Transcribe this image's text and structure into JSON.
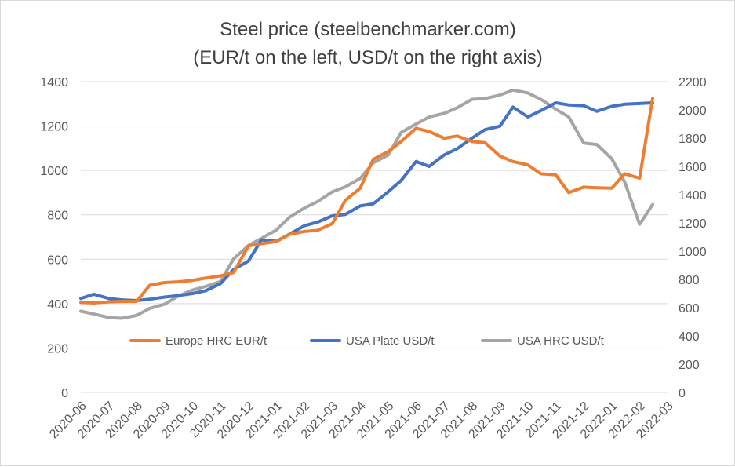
{
  "chart_data": {
    "type": "line",
    "title": "Steel price (steelbenchmarker.com)",
    "subtitle": "(EUR/t on the left, USD/t on the right axis)",
    "x_labels": [
      "2020-06",
      "2020-07",
      "2020-08",
      "2020-09",
      "2020-10",
      "2020-11",
      "2020-12",
      "2021-01",
      "2021-02",
      "2021-03",
      "2021-04",
      "2021-05",
      "2021-06",
      "2021-07",
      "2021-08",
      "2021-09",
      "2021-10",
      "2021-11",
      "2021-12",
      "2022-01",
      "2022-02",
      "2022-03"
    ],
    "y_left": {
      "min": 0,
      "max": 1400,
      "step": 200,
      "ticks": [
        "0",
        "200",
        "400",
        "600",
        "800",
        "1000",
        "1200",
        "1400"
      ]
    },
    "y_right": {
      "min": 0,
      "max": 2200,
      "step": 200,
      "ticks": [
        "0",
        "200",
        "400",
        "600",
        "800",
        "1000",
        "1200",
        "1400",
        "1600",
        "1800",
        "2000",
        "2200"
      ]
    },
    "grid": true,
    "legend_position": "inside-lower",
    "series": [
      {
        "name": "Europe HRC EUR/t",
        "axis": "left",
        "color": "#ed7d31",
        "points": [
          [
            "2020-06",
            405
          ],
          [
            "2020-06-15",
            403
          ],
          [
            "2020-07",
            408
          ],
          [
            "2020-07-15",
            410
          ],
          [
            "2020-08",
            410
          ],
          [
            "2020-08-15",
            483
          ],
          [
            "2020-09",
            495
          ],
          [
            "2020-09-15",
            498
          ],
          [
            "2020-10",
            505
          ],
          [
            "2020-10-15",
            515
          ],
          [
            "2020-11",
            525
          ],
          [
            "2020-11-15",
            540
          ],
          [
            "2020-12",
            660
          ],
          [
            "2020-12-15",
            670
          ],
          [
            "2021-01",
            680
          ],
          [
            "2021-01-15",
            712
          ],
          [
            "2021-02",
            725
          ],
          [
            "2021-02-15",
            730
          ],
          [
            "2021-03",
            760
          ],
          [
            "2021-03-15",
            865
          ],
          [
            "2021-04",
            920
          ],
          [
            "2021-04-15",
            1050
          ],
          [
            "2021-05",
            1085
          ],
          [
            "2021-05-15",
            1130
          ],
          [
            "2021-06",
            1190
          ],
          [
            "2021-06-15",
            1175
          ],
          [
            "2021-07",
            1145
          ],
          [
            "2021-07-15",
            1155
          ],
          [
            "2021-08",
            1130
          ],
          [
            "2021-08-15",
            1125
          ],
          [
            "2021-09",
            1065
          ],
          [
            "2021-09-15",
            1040
          ],
          [
            "2021-10",
            1025
          ],
          [
            "2021-10-15",
            985
          ],
          [
            "2021-11",
            980
          ],
          [
            "2021-11-15",
            900
          ],
          [
            "2021-12",
            925
          ],
          [
            "2021-12-15",
            922
          ],
          [
            "2022-01",
            920
          ],
          [
            "2022-01-15",
            985
          ],
          [
            "2022-02",
            965
          ],
          [
            "2022-02-15",
            1325
          ]
        ]
      },
      {
        "name": "USA Plate USD/t",
        "axis": "right",
        "color": "#4472c4",
        "points": [
          [
            "2020-06",
            665
          ],
          [
            "2020-06-15",
            695
          ],
          [
            "2020-07",
            665
          ],
          [
            "2020-07-15",
            655
          ],
          [
            "2020-08",
            650
          ],
          [
            "2020-08-15",
            660
          ],
          [
            "2020-09",
            675
          ],
          [
            "2020-09-15",
            685
          ],
          [
            "2020-10",
            700
          ],
          [
            "2020-10-15",
            720
          ],
          [
            "2020-11",
            770
          ],
          [
            "2020-11-15",
            870
          ],
          [
            "2020-12",
            930
          ],
          [
            "2020-12-15",
            1080
          ],
          [
            "2021-01",
            1070
          ],
          [
            "2021-01-15",
            1120
          ],
          [
            "2021-02",
            1180
          ],
          [
            "2021-02-15",
            1205
          ],
          [
            "2021-03",
            1250
          ],
          [
            "2021-03-15",
            1260
          ],
          [
            "2021-04",
            1320
          ],
          [
            "2021-04-15",
            1335
          ],
          [
            "2021-05",
            1420
          ],
          [
            "2021-05-15",
            1500
          ],
          [
            "2021-06",
            1635
          ],
          [
            "2021-06-15",
            1600
          ],
          [
            "2021-07",
            1680
          ],
          [
            "2021-07-15",
            1725
          ],
          [
            "2021-08",
            1800
          ],
          [
            "2021-08-15",
            1860
          ],
          [
            "2021-09",
            1885
          ],
          [
            "2021-09-15",
            2020
          ],
          [
            "2021-10",
            1950
          ],
          [
            "2021-10-15",
            1995
          ],
          [
            "2021-11",
            2050
          ],
          [
            "2021-11-15",
            2035
          ],
          [
            "2021-12",
            2030
          ],
          [
            "2021-12-15",
            1990
          ],
          [
            "2022-01",
            2025
          ],
          [
            "2022-01-15",
            2040
          ],
          [
            "2022-02",
            2045
          ],
          [
            "2022-02-15",
            2050
          ]
        ]
      },
      {
        "name": "USA HRC USD/t",
        "axis": "right",
        "color": "#a5a5a5",
        "points": [
          [
            "2020-06",
            575
          ],
          [
            "2020-06-15",
            555
          ],
          [
            "2020-07",
            530
          ],
          [
            "2020-07-15",
            525
          ],
          [
            "2020-08",
            545
          ],
          [
            "2020-08-15",
            595
          ],
          [
            "2020-09",
            625
          ],
          [
            "2020-09-15",
            680
          ],
          [
            "2020-10",
            725
          ],
          [
            "2020-10-15",
            750
          ],
          [
            "2020-11",
            785
          ],
          [
            "2020-11-15",
            945
          ],
          [
            "2020-12",
            1040
          ],
          [
            "2020-12-15",
            1090
          ],
          [
            "2021-01",
            1150
          ],
          [
            "2021-01-15",
            1240
          ],
          [
            "2021-02",
            1305
          ],
          [
            "2021-02-15",
            1350
          ],
          [
            "2021-03",
            1420
          ],
          [
            "2021-03-15",
            1455
          ],
          [
            "2021-04",
            1515
          ],
          [
            "2021-04-15",
            1625
          ],
          [
            "2021-05",
            1680
          ],
          [
            "2021-05-15",
            1840
          ],
          [
            "2021-06",
            1900
          ],
          [
            "2021-06-15",
            1950
          ],
          [
            "2021-07",
            1975
          ],
          [
            "2021-07-15",
            2015
          ],
          [
            "2021-08",
            2075
          ],
          [
            "2021-08-15",
            2080
          ],
          [
            "2021-09",
            2105
          ],
          [
            "2021-09-15",
            2140
          ],
          [
            "2021-10",
            2120
          ],
          [
            "2021-10-15",
            2075
          ],
          [
            "2021-11",
            2005
          ],
          [
            "2021-11-15",
            1950
          ],
          [
            "2021-12",
            1765
          ],
          [
            "2021-12-15",
            1755
          ],
          [
            "2022-01",
            1655
          ],
          [
            "2022-01-15",
            1490
          ],
          [
            "2022-02",
            1190
          ],
          [
            "2022-02-15",
            1330
          ]
        ]
      }
    ]
  }
}
